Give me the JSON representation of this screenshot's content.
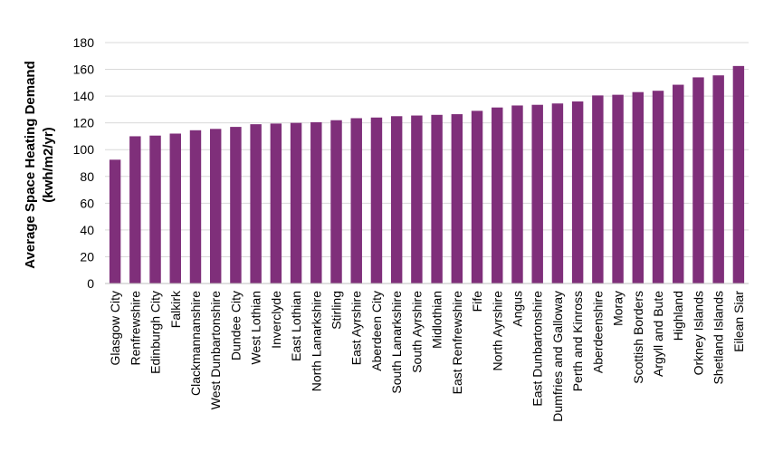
{
  "chart_data": {
    "type": "bar",
    "title": "",
    "xlabel": "",
    "ylabel_lines": [
      "Average Space Heating Demand",
      "(kwh/m2/yr)"
    ],
    "ylim": [
      0,
      180
    ],
    "yticks": [
      0,
      20,
      40,
      60,
      80,
      100,
      120,
      140,
      160,
      180
    ],
    "grid": true,
    "legend": "none",
    "bar_color": "#7f2f7a",
    "categories": [
      "Glasgow City",
      "Renfrewshire",
      "Edinburgh City",
      "Falkirk",
      "Clackmannanshire",
      "West Dunbartonshire",
      "Dundee City",
      "West Lothian",
      "Inverclyde",
      "East Lothian",
      "North Lanarkshire",
      "Stirling",
      "East Ayrshire",
      "Aberdeen City",
      "South Lanarkshire",
      "South Ayrshire",
      "Midlothian",
      "East Renfrewshire",
      "Fife",
      "North Ayrshire",
      "Angus",
      "East Dunbartonshire",
      "Dumfries and Galloway",
      "Perth and Kinross",
      "Aberdeenshire",
      "Moray",
      "Scottish Borders",
      "Argyll and Bute",
      "Highland",
      "Orkney Islands",
      "Shetland Islands",
      "Eilean Siar"
    ],
    "values": [
      92.5,
      110,
      110.5,
      112,
      114.5,
      115.5,
      117,
      119,
      119.5,
      120,
      120.5,
      122,
      123.5,
      124,
      125,
      125.5,
      126,
      126.5,
      129,
      131.5,
      133,
      133.5,
      134.5,
      136,
      140.5,
      141,
      143,
      144,
      148.5,
      154,
      155.5,
      162.5
    ]
  }
}
